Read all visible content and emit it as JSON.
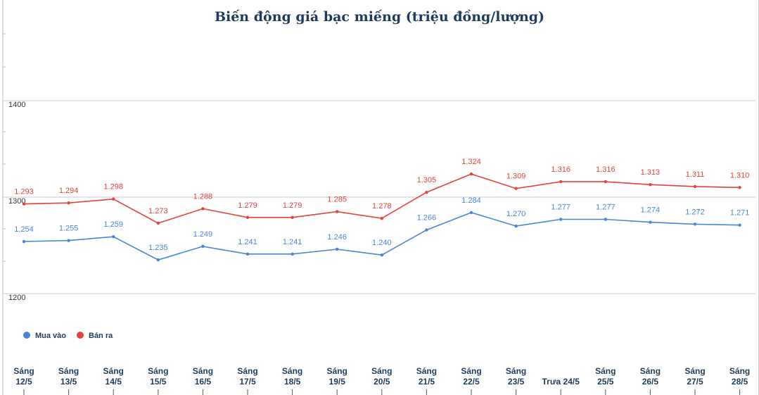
{
  "chart_data": {
    "type": "line",
    "title": "Biến động giá bạc miếng (triệu đồng/lượng)",
    "categories": [
      [
        "Sáng",
        "12/5"
      ],
      [
        "Sáng",
        "13/5"
      ],
      [
        "Sáng",
        "14/5"
      ],
      [
        "Sáng",
        "15/5"
      ],
      [
        "Sáng",
        "16/5"
      ],
      [
        "Sáng",
        "17/5"
      ],
      [
        "Sáng",
        "18/5"
      ],
      [
        "Sáng",
        "19/5"
      ],
      [
        "Sáng",
        "20/5"
      ],
      [
        "Sáng",
        "21/5"
      ],
      [
        "Sáng",
        "22/5"
      ],
      [
        "Sáng",
        "23/5"
      ],
      [
        "Trưa 24/5"
      ],
      [
        "Sáng",
        "25/5"
      ],
      [
        "Sáng",
        "26/5"
      ],
      [
        "Sáng",
        "27/5"
      ],
      [
        "Sáng",
        "28/5"
      ]
    ],
    "series": [
      {
        "name": "Mua vào",
        "color": "#4a86d8",
        "values": [
          1254,
          1255,
          1259,
          1235,
          1249,
          1241,
          1241,
          1246,
          1240,
          1266,
          1284,
          1270,
          1277,
          1277,
          1274,
          1272,
          1271
        ],
        "labels": [
          "1.254",
          "1.255",
          "1.259",
          "1.235",
          "1.249",
          "1.241",
          "1.241",
          "1.246",
          "1.240",
          "1.266",
          "1.284",
          "1.270",
          "1.277",
          "1.277",
          "1.274",
          "1.272",
          "1.271"
        ]
      },
      {
        "name": "Bán ra",
        "color": "#e0443a",
        "values": [
          1293,
          1294,
          1298,
          1273,
          1288,
          1279,
          1279,
          1285,
          1278,
          1305,
          1324,
          1309,
          1316,
          1316,
          1313,
          1311,
          1310
        ],
        "labels": [
          "1.293",
          "1.294",
          "1.298",
          "1.273",
          "1.288",
          "1.279",
          "1.279",
          "1.285",
          "1.278",
          "1.305",
          "1.324",
          "1.309",
          "1.316",
          "1.316",
          "1.313",
          "1.311",
          "1.310"
        ]
      }
    ],
    "y_ticks": [
      1200,
      1300,
      1400
    ],
    "ylim": [
      1200,
      1400
    ],
    "grid": true,
    "legend_position": "bottom-left"
  }
}
